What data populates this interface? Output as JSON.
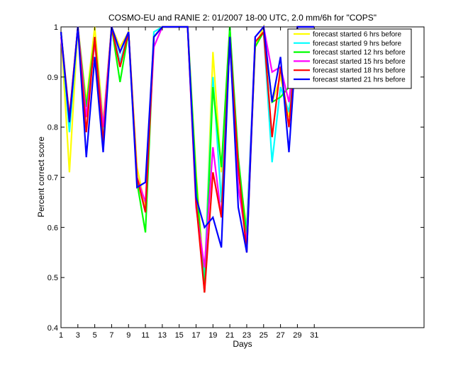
{
  "chart_data": {
    "type": "line",
    "title": "COSMO-EU and RANIE 2: 01/2007 18-00 UTC, 2.0 mm/6h for \"COPS\"",
    "xlabel": "Days",
    "ylabel": "Percent correct score",
    "xlim": [
      1,
      44
    ],
    "ylim": [
      0.4,
      1.0
    ],
    "xticks": [
      1,
      3,
      5,
      7,
      9,
      11,
      13,
      15,
      17,
      19,
      21,
      23,
      25,
      27,
      29,
      31
    ],
    "yticks": [
      0.4,
      0.5,
      0.6,
      0.7,
      0.8,
      0.9,
      1.0
    ],
    "ytick_labels": [
      "0.4",
      "0.5",
      "0.6",
      "0.7",
      "0.8",
      "0.9",
      "1"
    ],
    "grid": false,
    "legend_position": "top-right",
    "x": [
      1,
      2,
      3,
      4,
      5,
      6,
      7,
      8,
      9,
      10,
      11,
      12,
      13,
      14,
      15,
      16,
      17,
      18,
      19,
      20,
      21,
      22,
      23,
      24,
      25,
      26,
      27,
      28,
      29,
      30,
      31
    ],
    "series": [
      {
        "name": "forecast started 6 hrs before",
        "color": "#ffff00",
        "values": [
          0.99,
          0.71,
          1.0,
          0.85,
          1.0,
          0.81,
          1.0,
          0.96,
          0.99,
          0.72,
          0.64,
          0.99,
          1.0,
          1.0,
          1.0,
          1.0,
          0.71,
          0.49,
          0.95,
          0.71,
          1.0,
          0.72,
          0.6,
          0.96,
          1.0,
          0.85,
          0.9,
          0.82,
          1.0,
          1.0,
          1.0
        ]
      },
      {
        "name": "forecast started 9 hrs before",
        "color": "#00ffff",
        "values": [
          0.99,
          0.79,
          1.0,
          0.82,
          0.97,
          0.79,
          1.0,
          0.93,
          0.99,
          0.7,
          0.63,
          0.99,
          1.0,
          1.0,
          1.0,
          1.0,
          0.67,
          0.5,
          0.9,
          0.65,
          1.0,
          0.68,
          0.6,
          0.97,
          0.99,
          0.73,
          0.88,
          0.83,
          1.0,
          1.0,
          1.0
        ]
      },
      {
        "name": "forecast started 12 hrs before",
        "color": "#00ff00",
        "values": [
          0.99,
          0.81,
          1.0,
          0.84,
          0.98,
          0.8,
          1.0,
          0.89,
          0.99,
          0.69,
          0.59,
          0.98,
          1.0,
          1.0,
          1.0,
          1.0,
          0.7,
          0.47,
          0.88,
          0.72,
          1.0,
          0.74,
          0.58,
          0.96,
          0.99,
          0.85,
          0.86,
          0.88,
          1.0,
          1.0,
          1.0
        ]
      },
      {
        "name": "forecast started 15 hrs before",
        "color": "#ff00ff",
        "values": [
          0.98,
          0.82,
          1.0,
          0.82,
          0.97,
          0.8,
          1.0,
          0.95,
          0.99,
          0.7,
          0.65,
          0.96,
          1.0,
          1.0,
          1.0,
          1.0,
          0.64,
          0.52,
          0.76,
          0.62,
          0.97,
          0.68,
          0.57,
          0.98,
          1.0,
          0.91,
          0.92,
          0.85,
          1.0,
          1.0,
          1.0
        ]
      },
      {
        "name": "forecast started 18 hrs before",
        "color": "#ff0000",
        "values": [
          0.99,
          0.82,
          1.0,
          0.79,
          0.98,
          0.77,
          1.0,
          0.92,
          0.99,
          0.7,
          0.63,
          0.98,
          1.0,
          1.0,
          1.0,
          1.0,
          0.65,
          0.47,
          0.71,
          0.62,
          0.98,
          0.72,
          0.55,
          0.97,
          0.99,
          0.78,
          0.92,
          0.8,
          1.0,
          1.0,
          1.0
        ]
      },
      {
        "name": "forecast started 21 hrs before",
        "color": "#0000ff",
        "values": [
          0.99,
          0.81,
          1.0,
          0.74,
          0.94,
          0.75,
          1.0,
          0.95,
          0.99,
          0.68,
          0.69,
          0.98,
          1.0,
          1.0,
          1.0,
          1.0,
          0.66,
          0.6,
          0.62,
          0.56,
          0.98,
          0.64,
          0.55,
          0.98,
          1.0,
          0.85,
          0.94,
          0.75,
          1.0,
          1.0,
          1.0
        ]
      }
    ]
  }
}
